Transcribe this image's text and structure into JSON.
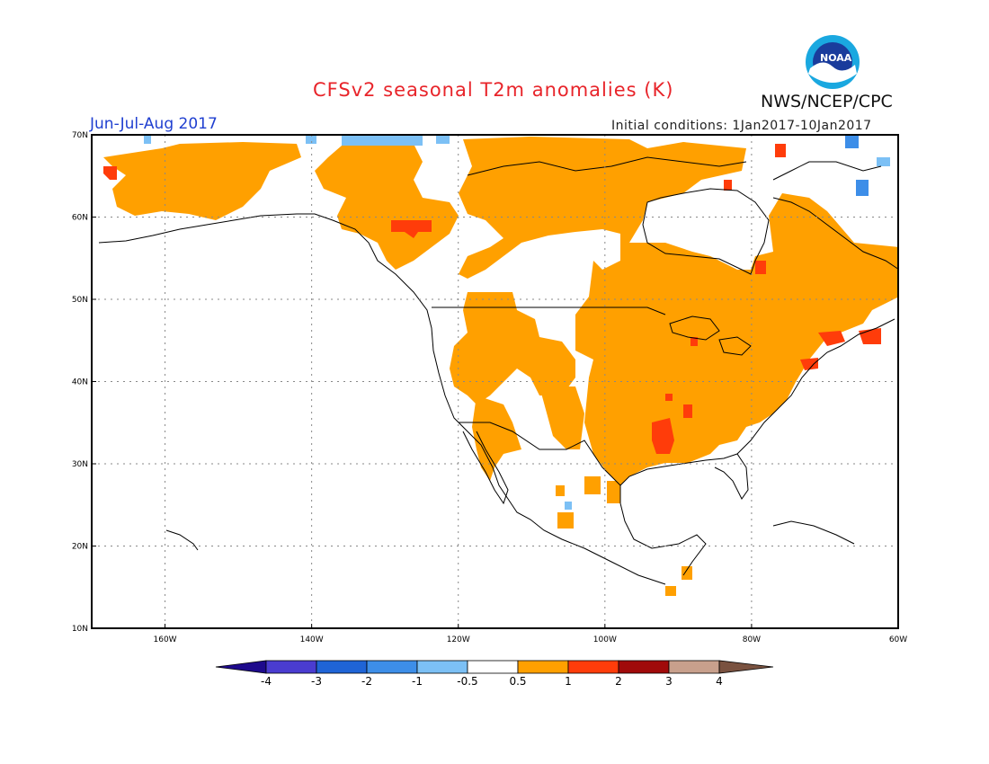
{
  "header": {
    "title": "CFSv2 seasonal T2m anomalies (K)",
    "period": "Jun-Jul-Aug 2017",
    "initial_conditions": "Initial conditions: 1Jan2017-10Jan2017",
    "agency": "NWS/NCEP/CPC",
    "logo_text": "NOAA"
  },
  "map": {
    "region": "North America",
    "projection": "lat-lon",
    "lon_range": [
      -170,
      -60
    ],
    "lat_range": [
      10,
      70
    ],
    "lat_ticks": [
      "10N",
      "20N",
      "30N",
      "40N",
      "50N",
      "60N",
      "70N"
    ],
    "lon_ticks": [
      "160W",
      "140W",
      "120W",
      "100W",
      "80W",
      "60W"
    ],
    "gridlines": "dotted"
  },
  "colorbar": {
    "ticks": [
      "-4",
      "-3",
      "-2",
      "-1",
      "-0.5",
      "0.5",
      "1",
      "2",
      "3",
      "4"
    ],
    "colors": [
      "#1e0a8c",
      "#4a3cd0",
      "#1f64d6",
      "#3d8ee8",
      "#7cc0f5",
      "#ffffff",
      "#ffa000",
      "#ff3c0a",
      "#a00a0a",
      "#c8a08c",
      "#7a5240"
    ]
  },
  "anomaly_colors": {
    "warm_0_5_1": "#ffa000",
    "warm_1_2": "#ff3c0a",
    "cool_0_5_1": "#7cc0f5",
    "cool_1_2": "#3d8ee8"
  }
}
